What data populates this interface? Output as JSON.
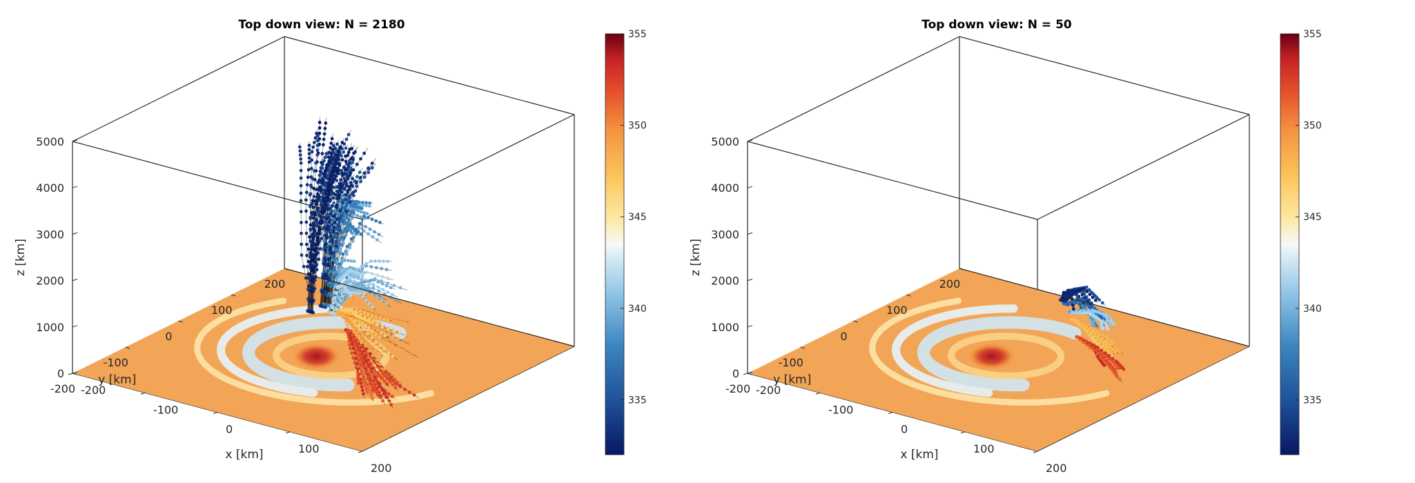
{
  "chart_data": [
    {
      "type": "3d-scatter-trajectories",
      "title": "Top down view: N = 2180",
      "xlabel": "x [km]",
      "ylabel": "y [km]",
      "zlabel": "z [km]",
      "xlim": [
        -200,
        200
      ],
      "ylim": [
        -200,
        200
      ],
      "zlim": [
        0,
        5000
      ],
      "xticks": [
        -200,
        -100,
        0,
        100,
        200
      ],
      "yticks": [
        -200,
        -100,
        0,
        100,
        200
      ],
      "zticks": [
        0,
        1000,
        2000,
        3000,
        4000,
        5000
      ],
      "xtick_labels": [
        "-200",
        "-100",
        "0",
        "100",
        "200"
      ],
      "ytick_labels": [
        "-200",
        "-100",
        "0",
        "100",
        "200"
      ],
      "ztick_labels": [
        "0",
        "1000",
        "2000",
        "3000",
        "4000",
        "5000"
      ],
      "colorbar": {
        "range": [
          332,
          355
        ],
        "ticks": [
          "335",
          "340",
          "345",
          "350",
          "355"
        ],
        "tick_values": [
          335,
          340,
          345,
          350,
          355
        ],
        "colormap": "red-blue diverging"
      },
      "surface": {
        "description_colors": [
          "#f0a55a",
          "#c0e0f2",
          "#b3262b"
        ]
      },
      "trajectory_count": 2180,
      "trajectories_sample": [
        {
          "theta_color": 333,
          "points": [
            [
              -40,
              30,
              700
            ],
            [
              -30,
              20,
              2000
            ],
            [
              -15,
              10,
              3300
            ],
            [
              0,
              5,
              4200
            ],
            [
              20,
              -10,
              4800
            ]
          ]
        },
        {
          "theta_color": 334,
          "points": [
            [
              -30,
              40,
              800
            ],
            [
              -10,
              30,
              2500
            ],
            [
              10,
              20,
              3600
            ],
            [
              40,
              0,
              4300
            ]
          ]
        },
        {
          "theta_color": 338,
          "points": [
            [
              -20,
              35,
              900
            ],
            [
              0,
              20,
              2200
            ],
            [
              30,
              0,
              3300
            ],
            [
              60,
              -20,
              3400
            ]
          ]
        },
        {
          "theta_color": 340,
          "points": [
            [
              -10,
              30,
              800
            ],
            [
              20,
              10,
              1700
            ],
            [
              60,
              -20,
              2200
            ],
            [
              100,
              -40,
              2300
            ]
          ]
        },
        {
          "theta_color": 348,
          "points": [
            [
              0,
              25,
              900
            ],
            [
              40,
              0,
              1100
            ],
            [
              90,
              -40,
              1200
            ],
            [
              130,
              -60,
              1200
            ]
          ]
        },
        {
          "theta_color": 352,
          "points": [
            [
              20,
              20,
              600
            ],
            [
              60,
              -10,
              500
            ],
            [
              100,
              -40,
              300
            ],
            [
              130,
              -60,
              200
            ]
          ]
        }
      ]
    },
    {
      "type": "3d-scatter-trajectories",
      "title": "Top down view: N = 50",
      "xlabel": "x [km]",
      "ylabel": "y [km]",
      "zlabel": "z [km]",
      "xlim": [
        -200,
        200
      ],
      "ylim": [
        -200,
        200
      ],
      "zlim": [
        0,
        5000
      ],
      "xticks": [
        -200,
        -100,
        0,
        100,
        200
      ],
      "yticks": [
        -200,
        -100,
        0,
        100,
        200
      ],
      "zticks": [
        0,
        1000,
        2000,
        3000,
        4000,
        5000
      ],
      "xtick_labels": [
        "-200",
        "-100",
        "0",
        "100",
        "200"
      ],
      "ytick_labels": [
        "-200",
        "-100",
        "0",
        "100",
        "200"
      ],
      "ztick_labels": [
        "0",
        "1000",
        "2000",
        "3000",
        "4000",
        "5000"
      ],
      "colorbar": {
        "range": [
          332,
          355
        ],
        "ticks": [
          "335",
          "340",
          "345",
          "350",
          "355"
        ],
        "tick_values": [
          335,
          340,
          345,
          350,
          355
        ],
        "colormap": "red-blue diverging"
      },
      "surface": {
        "description_colors": [
          "#f0a55a",
          "#c0e0f2",
          "#b3262b"
        ]
      },
      "trajectory_count": 50,
      "trajectories_sample": [
        {
          "theta_color": 334,
          "points": [
            [
              60,
              40,
              1300
            ],
            [
              100,
              0,
              1900
            ],
            [
              140,
              -40,
              2300
            ],
            [
              170,
              -60,
              2200
            ]
          ]
        },
        {
          "theta_color": 336,
          "points": [
            [
              60,
              45,
              1200
            ],
            [
              110,
              10,
              1700
            ],
            [
              150,
              -30,
              1900
            ],
            [
              180,
              -50,
              1900
            ]
          ]
        },
        {
          "theta_color": 340,
          "points": [
            [
              70,
              40,
              1100
            ],
            [
              110,
              20,
              1400
            ],
            [
              150,
              -10,
              1600
            ],
            [
              170,
              -30,
              1600
            ]
          ]
        },
        {
          "theta_color": 347,
          "points": [
            [
              70,
              45,
              900
            ],
            [
              110,
              20,
              1000
            ],
            [
              150,
              -10,
              1100
            ],
            [
              180,
              -30,
              1100
            ]
          ]
        },
        {
          "theta_color": 352,
          "points": [
            [
              80,
              40,
              600
            ],
            [
              120,
              20,
              650
            ],
            [
              160,
              -10,
              700
            ],
            [
              190,
              -30,
              700
            ]
          ]
        }
      ]
    }
  ]
}
